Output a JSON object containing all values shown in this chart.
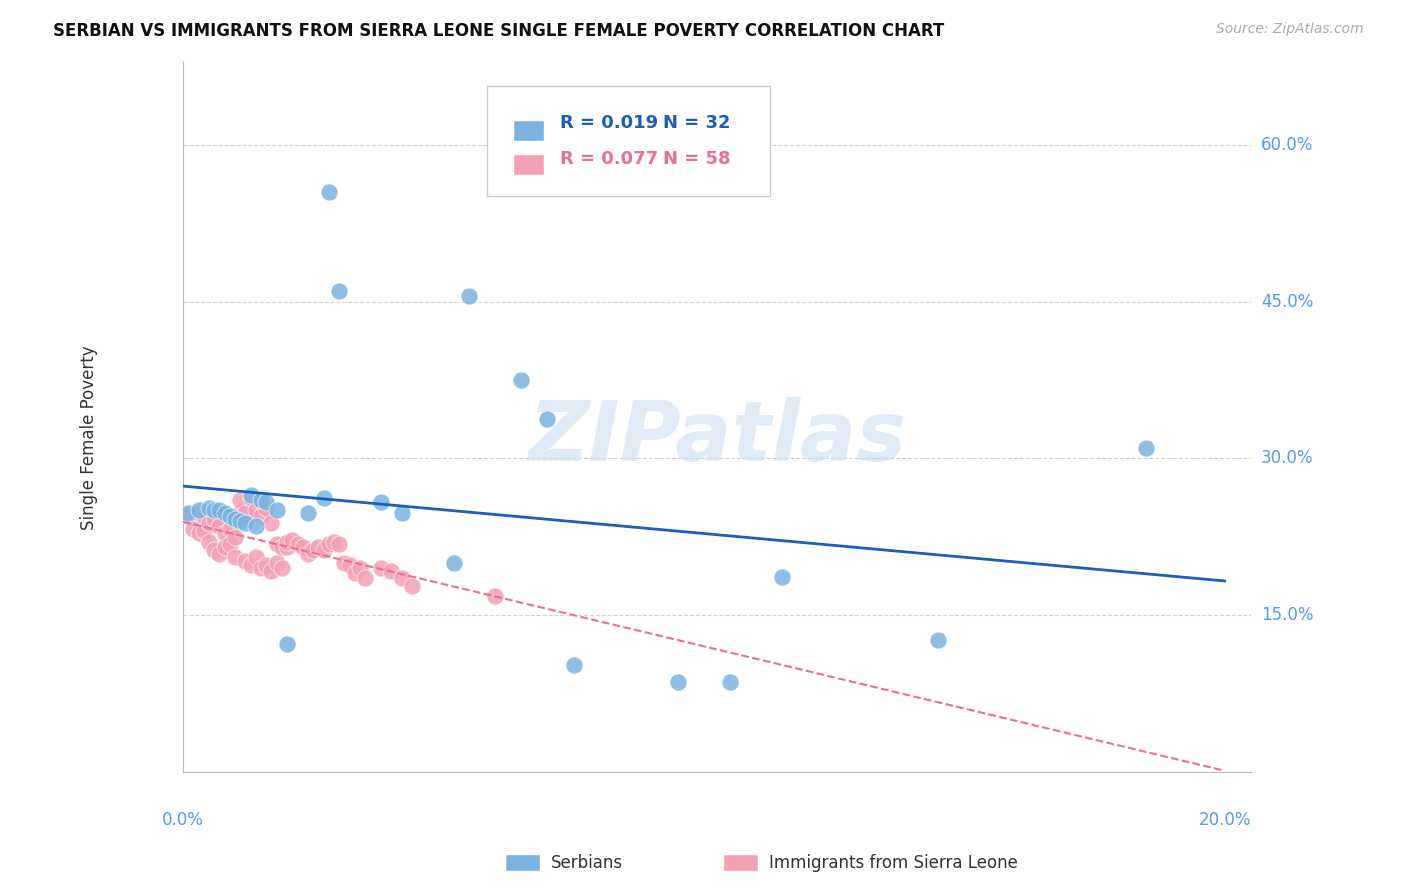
{
  "title": "SERBIAN VS IMMIGRANTS FROM SIERRA LEONE SINGLE FEMALE POVERTY CORRELATION CHART",
  "source": "Source: ZipAtlas.com",
  "ylabel": "Single Female Poverty",
  "watermark": "ZIPatlas",
  "serbian_R": "0.019",
  "serbian_N": "32",
  "sierra_leone_R": "0.077",
  "sierra_leone_N": "58",
  "serbian_color": "#7ab3e0",
  "sierra_leone_color": "#f4a0b5",
  "serbian_line_color": "#1a5fba",
  "sierra_leone_line_color": "#e87090",
  "xlim": [
    0.0,
    0.205
  ],
  "ylim": [
    0.0,
    0.68
  ],
  "ytick_values": [
    0.15,
    0.3,
    0.45,
    0.6
  ],
  "ytick_labels": [
    "15.0%",
    "30.0%",
    "45.0%",
    "60.0%"
  ],
  "xtick_values": [
    0.0,
    0.05,
    0.1,
    0.15,
    0.2
  ],
  "xtick_labels": [
    "0.0%",
    "",
    "",
    "",
    "20.0%"
  ],
  "serbian_x": [
    0.028,
    0.001,
    0.003,
    0.005,
    0.006,
    0.007,
    0.008,
    0.009,
    0.01,
    0.011,
    0.012,
    0.013,
    0.014,
    0.015,
    0.016,
    0.018,
    0.02,
    0.024,
    0.027,
    0.03,
    0.038,
    0.055,
    0.065,
    0.07,
    0.075,
    0.095,
    0.105,
    0.115,
    0.145,
    0.185,
    0.042,
    0.052
  ],
  "serbian_y": [
    0.555,
    0.248,
    0.25,
    0.252,
    0.25,
    0.25,
    0.248,
    0.245,
    0.242,
    0.24,
    0.238,
    0.265,
    0.235,
    0.26,
    0.258,
    0.25,
    0.122,
    0.248,
    0.262,
    0.46,
    0.258,
    0.455,
    0.375,
    0.338,
    0.102,
    0.086,
    0.086,
    0.186,
    0.126,
    0.31,
    0.248,
    0.2
  ],
  "sierra_leone_x": [
    0.001,
    0.002,
    0.003,
    0.003,
    0.004,
    0.004,
    0.005,
    0.005,
    0.006,
    0.006,
    0.007,
    0.007,
    0.008,
    0.008,
    0.009,
    0.009,
    0.01,
    0.01,
    0.011,
    0.011,
    0.012,
    0.012,
    0.013,
    0.013,
    0.014,
    0.014,
    0.015,
    0.015,
    0.016,
    0.016,
    0.017,
    0.017,
    0.018,
    0.018,
    0.019,
    0.019,
    0.02,
    0.02,
    0.021,
    0.022,
    0.023,
    0.024,
    0.025,
    0.026,
    0.027,
    0.028,
    0.029,
    0.03,
    0.031,
    0.032,
    0.033,
    0.034,
    0.035,
    0.038,
    0.04,
    0.042,
    0.044,
    0.06
  ],
  "sierra_leone_y": [
    0.245,
    0.232,
    0.228,
    0.248,
    0.23,
    0.245,
    0.22,
    0.238,
    0.212,
    0.242,
    0.208,
    0.235,
    0.215,
    0.228,
    0.218,
    0.232,
    0.205,
    0.225,
    0.248,
    0.26,
    0.202,
    0.248,
    0.198,
    0.262,
    0.205,
    0.25,
    0.195,
    0.245,
    0.198,
    0.252,
    0.192,
    0.238,
    0.2,
    0.218,
    0.195,
    0.215,
    0.215,
    0.22,
    0.222,
    0.218,
    0.215,
    0.208,
    0.212,
    0.215,
    0.212,
    0.218,
    0.22,
    0.218,
    0.2,
    0.198,
    0.19,
    0.195,
    0.185,
    0.195,
    0.192,
    0.185,
    0.178,
    0.168
  ]
}
